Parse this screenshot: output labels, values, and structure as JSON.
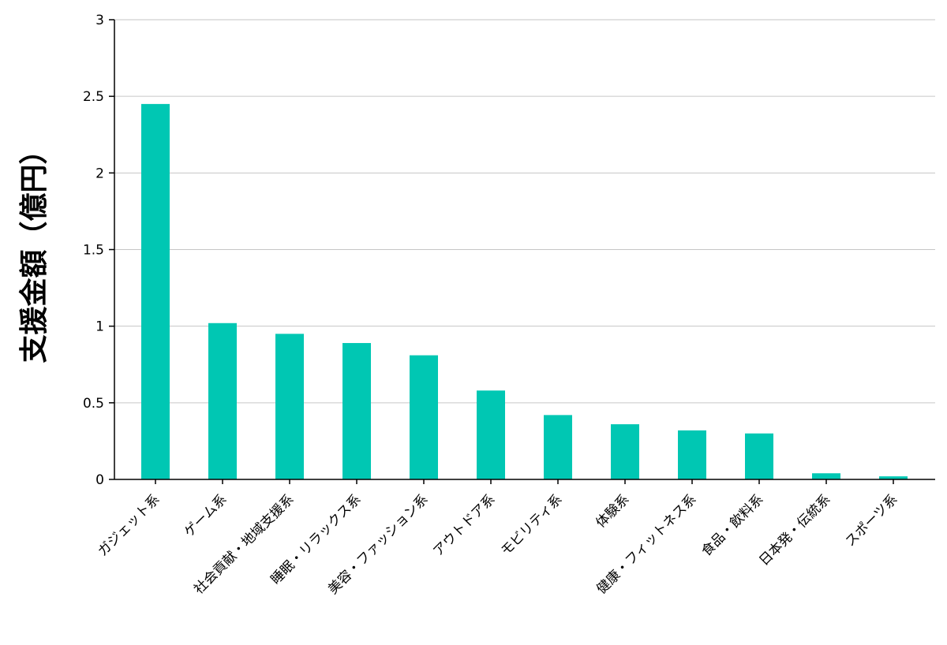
{
  "chart_data": {
    "type": "bar",
    "title": "",
    "ylabel": "支援金額（億円）",
    "xlabel": "",
    "ylim": [
      0,
      3
    ],
    "yticks": [
      0,
      0.5,
      1,
      1.5,
      2,
      2.5,
      3
    ],
    "ytick_labels": [
      "0",
      "0.5",
      "1",
      "1.5",
      "2",
      "2.5",
      "3"
    ],
    "categories": [
      "ガジェット系",
      "ゲーム系",
      "社会貢献・地域支援系",
      "睡眠・リラックス系",
      "美容・ファッション系",
      "アウトドア系",
      "モビリティ系",
      "体験系",
      "健康・フィットネス系",
      "食品・飲料系",
      "日本発・伝統系",
      "スポーツ系"
    ],
    "values": [
      2.45,
      1.02,
      0.95,
      0.89,
      0.81,
      0.58,
      0.42,
      0.36,
      0.32,
      0.3,
      0.04,
      0.02
    ],
    "series": [
      {
        "name": "支援金額",
        "values": [
          2.45,
          1.02,
          0.95,
          0.89,
          0.81,
          0.58,
          0.42,
          0.36,
          0.32,
          0.3,
          0.04,
          0.02
        ]
      }
    ],
    "x_tick_rotation": 45,
    "grid": true,
    "legend": false,
    "bar_color": "#00C7B3",
    "grid_color": "#C6C6C6",
    "axis_color": "#000000",
    "background_color": "#FFFFFF"
  }
}
